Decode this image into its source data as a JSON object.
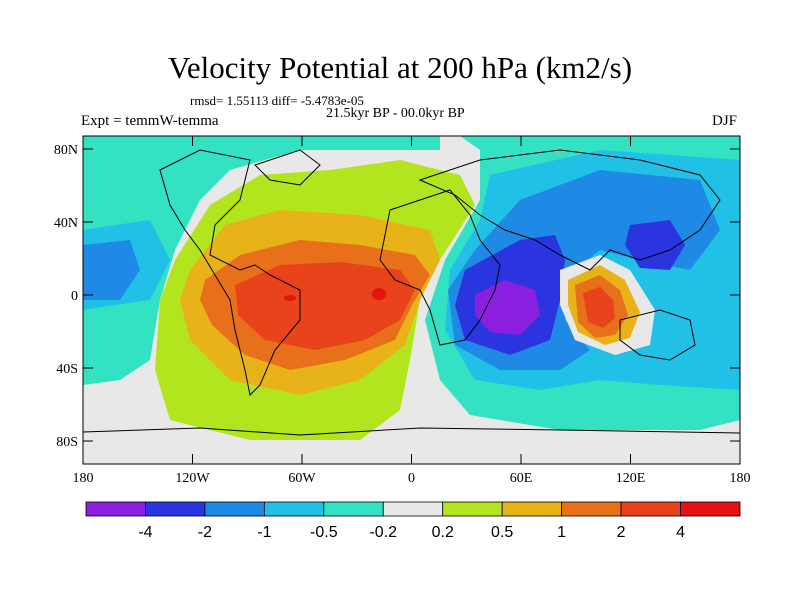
{
  "title": "Velocity Potential at 200 hPa (km2/s)",
  "stats": "rmsd= 1.55113 diff= -5.4783e-05",
  "period": "21.5kyr BP - 00.0kyr BP",
  "experiment": "Expt = temmW-temma",
  "season": "DJF",
  "lat_ticks": [
    "80N",
    "40N",
    "0",
    "40S",
    "80S"
  ],
  "lon_ticks": [
    "180",
    "120W",
    "60W",
    "0",
    "60E",
    "120E",
    "180"
  ],
  "colorbar": {
    "labels": [
      "-4",
      "-2",
      "-1",
      "-0.5",
      "-0.2",
      "0.2",
      "0.5",
      "1",
      "2",
      "4"
    ],
    "colors": [
      "#8a1fe0",
      "#2a35e0",
      "#1f8ae6",
      "#21c0e6",
      "#33e2c3",
      "#e8e8e8",
      "#b3e51f",
      "#e8b318",
      "#e8701a",
      "#e8431a",
      "#e41414"
    ]
  },
  "chart_data": {
    "type": "filled-contour-map",
    "variable": "Velocity Potential at 200 hPa",
    "units": "km2/s",
    "levels": [
      -4,
      -2,
      -1,
      -0.5,
      -0.2,
      0.2,
      0.5,
      1,
      2,
      4
    ],
    "lon_range": [
      -180,
      180
    ],
    "lat_range": [
      -90,
      90
    ],
    "features": [
      {
        "label": "negative minimum (< -4)",
        "lon": 50,
        "lat": 0
      },
      {
        "label": "negative minimum (-4 to -2)",
        "lon": 130,
        "lat": 25
      },
      {
        "label": "positive maximum (2 to 4)",
        "lon": 100,
        "lat": 5
      },
      {
        "label": "positive maximum (> 4)",
        "lon": -15,
        "lat": 0
      },
      {
        "label": "positive maximum (> 4)",
        "lon": -70,
        "lat": -2
      }
    ]
  }
}
